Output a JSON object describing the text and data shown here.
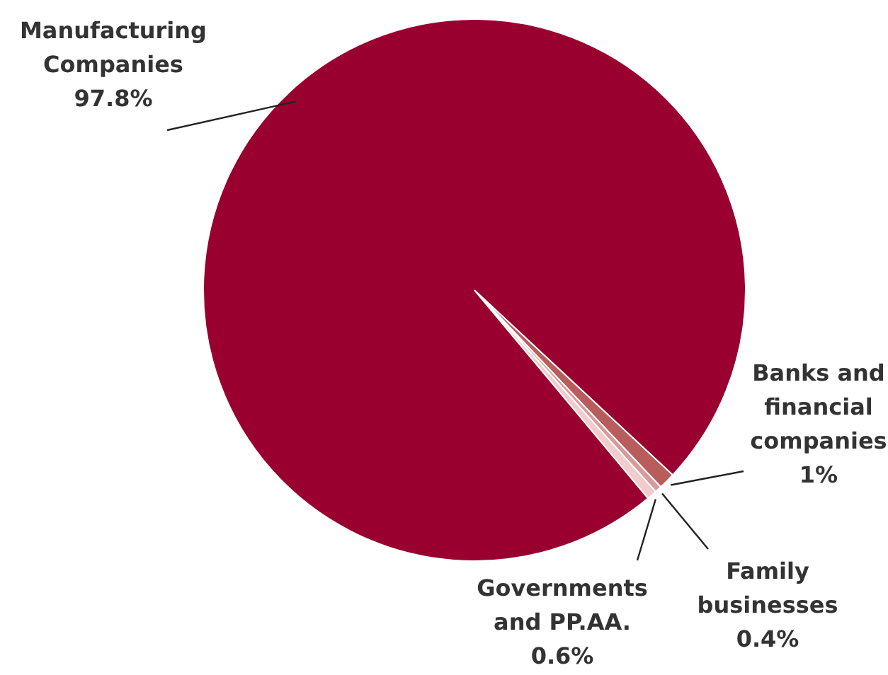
{
  "chart_data": {
    "type": "pie",
    "categories": [
      "Banks and financial companies",
      "Family businesses",
      "Governments and PP.AA.",
      "Manufacturing Companies"
    ],
    "values": [
      1,
      0.4,
      0.6,
      97.8
    ],
    "value_labels": [
      "1%",
      "0.4%",
      "0.6%",
      "97.8%"
    ],
    "colors": [
      "#b85c5c",
      "#d89a9a",
      "#f0cccc",
      "#990030"
    ],
    "legend": false
  }
}
